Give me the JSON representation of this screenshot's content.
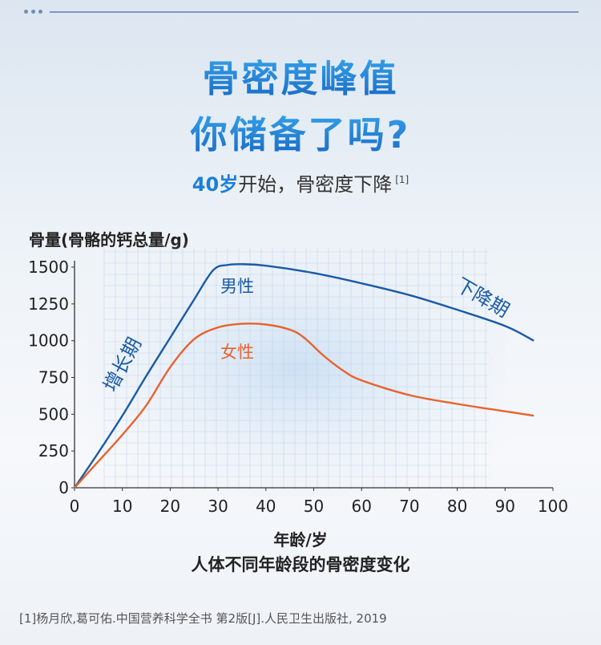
{
  "header": {
    "title_line1": "骨密度峰值",
    "title_line2": "你储备了吗?",
    "subtitle_accent": "40岁",
    "subtitle_rest": "开始，骨密度下降",
    "subtitle_ref": "[1]"
  },
  "chart_data": {
    "type": "line",
    "title": "人体不同年龄段的骨密度变化",
    "xlabel": "年龄/岁",
    "ylabel": "骨量(骨骼的钙总量/g)",
    "xlim": [
      0,
      100
    ],
    "ylim": [
      0,
      1500
    ],
    "x_ticks": [
      "0",
      "10",
      "20",
      "30",
      "40",
      "50",
      "60",
      "70",
      "80",
      "90",
      "100"
    ],
    "y_ticks": [
      "0",
      "250",
      "500",
      "750",
      "1000",
      "1250",
      "1500"
    ],
    "grid": true,
    "series": [
      {
        "name": "男性",
        "color": "#1a5aa6",
        "points": [
          [
            0,
            0
          ],
          [
            5,
            240
          ],
          [
            10,
            490
          ],
          [
            15,
            760
          ],
          [
            20,
            1020
          ],
          [
            25,
            1280
          ],
          [
            29,
            1480
          ],
          [
            32,
            1515
          ],
          [
            35,
            1520
          ],
          [
            40,
            1510
          ],
          [
            50,
            1460
          ],
          [
            60,
            1390
          ],
          [
            70,
            1310
          ],
          [
            80,
            1210
          ],
          [
            90,
            1100
          ],
          [
            96,
            1000
          ]
        ]
      },
      {
        "name": "女性",
        "color": "#e8622e",
        "points": [
          [
            0,
            0
          ],
          [
            5,
            180
          ],
          [
            10,
            360
          ],
          [
            15,
            560
          ],
          [
            20,
            820
          ],
          [
            25,
            1010
          ],
          [
            30,
            1090
          ],
          [
            35,
            1115
          ],
          [
            40,
            1110
          ],
          [
            45,
            1075
          ],
          [
            48,
            1020
          ],
          [
            52,
            900
          ],
          [
            56,
            800
          ],
          [
            60,
            730
          ],
          [
            70,
            630
          ],
          [
            80,
            570
          ],
          [
            90,
            520
          ],
          [
            96,
            490
          ]
        ]
      }
    ],
    "annotations": [
      "增长期",
      "下降期"
    ]
  },
  "footer": {
    "reference": "[1]杨月欣,葛可佑.中国营养科学全书 第2版[J].人民卫生出版社, 2019"
  }
}
